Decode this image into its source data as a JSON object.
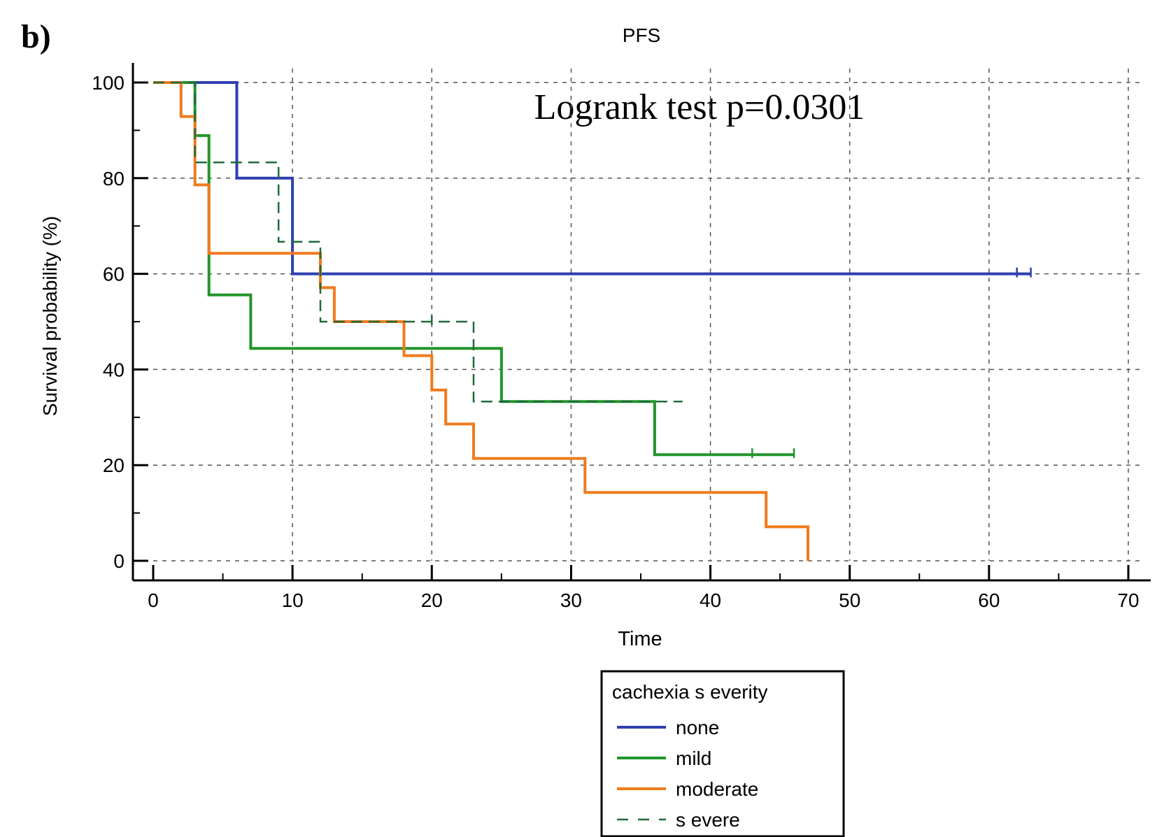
{
  "panel_label": "b)",
  "chart_data": {
    "type": "line",
    "subtype": "kaplan-meier",
    "title": "PFS",
    "annotation": "Logrank test  p=0.0301",
    "xlabel": "Time",
    "ylabel": "Survival probability (%)",
    "xlim": [
      0,
      70
    ],
    "ylim": [
      0,
      100
    ],
    "xticks": [
      0,
      10,
      20,
      30,
      40,
      50,
      60,
      70
    ],
    "yticks": [
      0,
      20,
      40,
      60,
      80,
      100
    ],
    "grid": true,
    "legend": {
      "title": "cachexia s everity",
      "placement": "bottom-center"
    },
    "series": [
      {
        "name": "none",
        "color": "#2e3fb0",
        "dash": "solid",
        "x": [
          0,
          6,
          6,
          10,
          10,
          63
        ],
        "y": [
          100,
          100,
          80,
          80,
          60,
          60
        ],
        "censor_x": [
          62,
          63
        ]
      },
      {
        "name": "mild",
        "color": "#21952b",
        "dash": "solid",
        "x": [
          0,
          3,
          3,
          4,
          4,
          7,
          7,
          25,
          25,
          36,
          36,
          46
        ],
        "y": [
          100,
          100,
          88.9,
          88.9,
          55.6,
          55.6,
          44.4,
          44.4,
          33.3,
          33.3,
          22.2,
          22.2
        ],
        "censor_x": [
          43,
          46
        ]
      },
      {
        "name": "moderate",
        "color": "#f07a1c",
        "dash": "solid",
        "x": [
          0,
          2,
          2,
          3,
          3,
          4,
          4,
          12,
          12,
          13,
          13,
          18,
          18,
          20,
          20,
          21,
          21,
          23,
          23,
          31,
          31,
          44,
          44,
          47,
          47
        ],
        "y": [
          100,
          100,
          92.9,
          92.9,
          78.6,
          78.6,
          64.3,
          64.3,
          57.1,
          57.1,
          50,
          50,
          42.9,
          42.9,
          35.7,
          35.7,
          28.6,
          28.6,
          21.4,
          21.4,
          14.3,
          14.3,
          7.1,
          7.1,
          0
        ],
        "censor_x": []
      },
      {
        "name": "s evere",
        "color": "#1f6a3a",
        "dash": "dashed",
        "x": [
          0,
          3,
          3,
          9,
          9,
          12,
          12,
          23,
          23,
          38
        ],
        "y": [
          100,
          100,
          83.3,
          83.3,
          66.7,
          66.7,
          50,
          50,
          33.3,
          33.3
        ],
        "censor_x": [
          20
        ]
      }
    ]
  }
}
